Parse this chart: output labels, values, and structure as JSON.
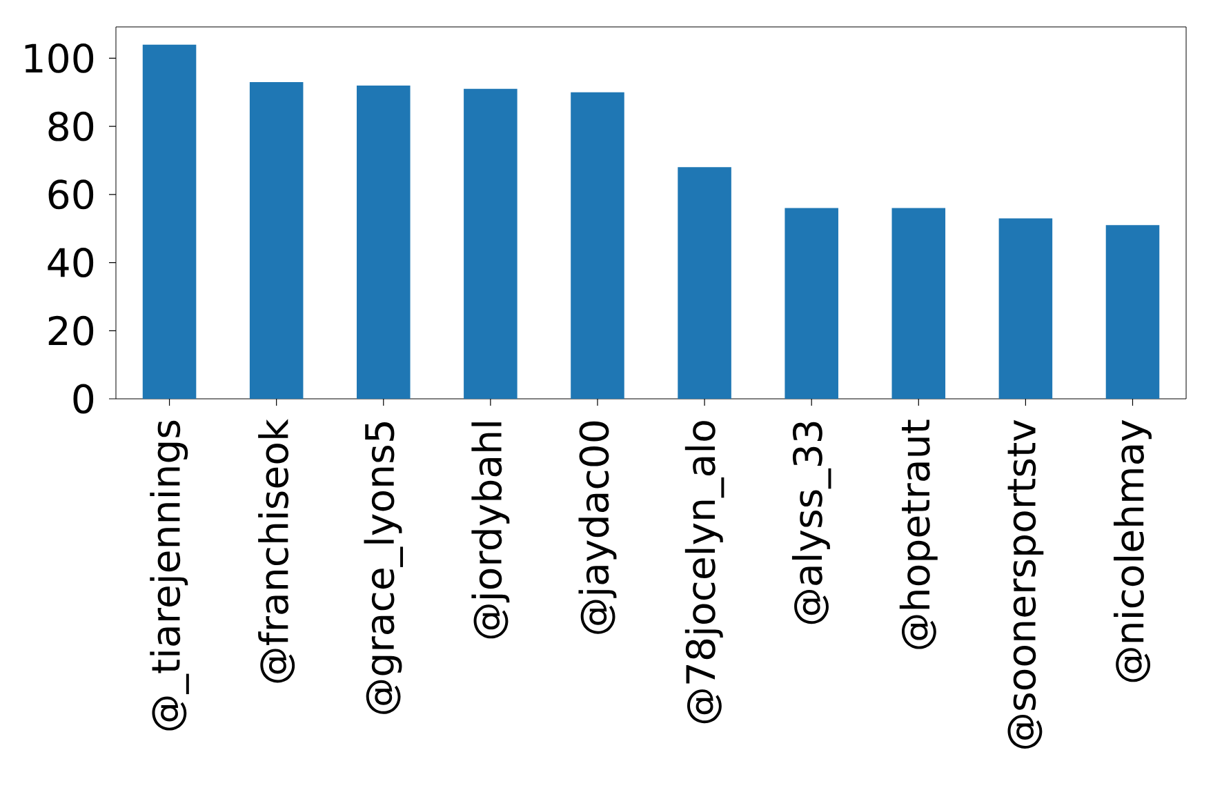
{
  "chart_data": {
    "type": "bar",
    "categories": [
      "@_tiarejennings",
      "@franchiseok",
      "@grace_lyons5",
      "@jordybahl",
      "@jaydac00",
      "@78jocelyn_alo",
      "@alyss_33",
      "@hopetraut",
      "@soonersportstv",
      "@nicolehmay"
    ],
    "values": [
      104,
      93,
      92,
      91,
      90,
      68,
      56,
      56,
      53,
      51
    ],
    "color": "#1f77b4",
    "ylim": [
      0,
      109.2
    ],
    "yticks": [
      0,
      20,
      40,
      60,
      80,
      100
    ],
    "grid": false
  }
}
